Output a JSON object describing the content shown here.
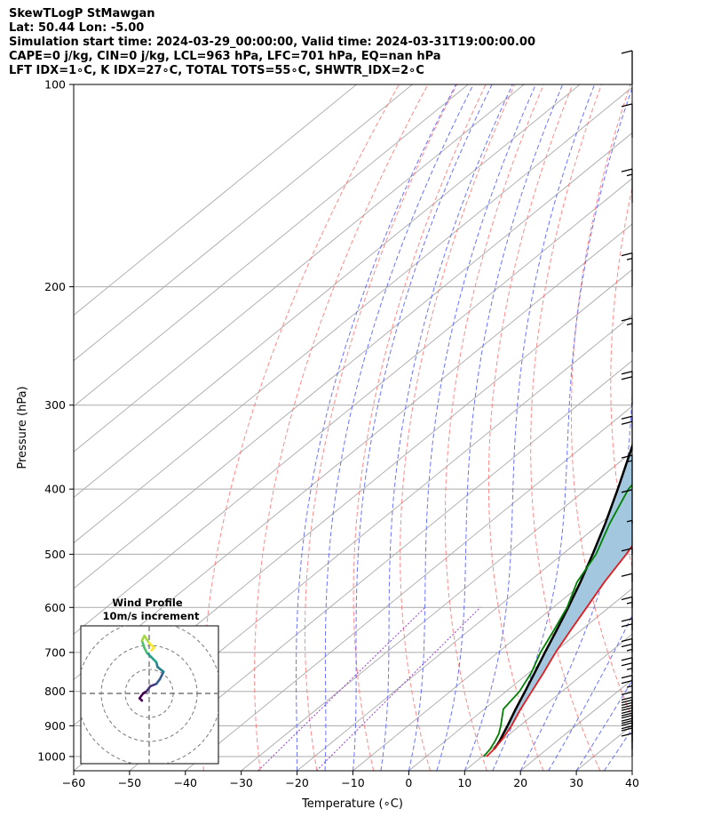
{
  "header": {
    "title": "SkewTLogP StMawgan",
    "location": "Lat: 50.44   Lon: -5.00",
    "times": "Simulation start time: 2024-03-29_00:00:00, Valid time: 2024-03-31T19:00:00.00",
    "indices_1": "CAPE=0 j/kg, CIN=0 j/kg, LCL=963 hPa, LFC=701 hPa, EQ=nan hPa",
    "indices_2": "LFT IDX=1∘C, K IDX=27∘C, TOTAL TOTS=55∘C, SHWTR_IDX=2∘C"
  },
  "chart_data": {
    "type": "line",
    "title": "SkewTLogP StMawgan",
    "xlabel": "Temperature (∘C)",
    "ylabel": "Pressure (hPa)",
    "xlim": [
      -60,
      40
    ],
    "ylim": [
      1050,
      100
    ],
    "y_scale": "log",
    "skew": "skew-T",
    "grid": true,
    "x_ticks": [
      -60,
      -50,
      -40,
      -30,
      -20,
      -10,
      0,
      10,
      20,
      30,
      40
    ],
    "y_ticks": [
      100,
      200,
      300,
      400,
      500,
      600,
      700,
      800,
      900,
      1000
    ],
    "colors": {
      "temperature": "#e41a1c",
      "dewpoint": "#008000",
      "parcel": "#000000",
      "shade": "#a3c7df",
      "dry_adiabats": "#ff6b6b",
      "moist_adiabats": "#5a63ff",
      "isotherms": "#aaaaaa",
      "mixing_ratio": "#9440c9"
    },
    "series": [
      {
        "role": "temperature",
        "points": [
          [
            1000,
            10.8
          ],
          [
            975,
            10.5
          ],
          [
            950,
            10.0
          ],
          [
            925,
            9.3
          ],
          [
            900,
            8.5
          ],
          [
            850,
            6.5
          ],
          [
            800,
            4.6
          ],
          [
            750,
            2.6
          ],
          [
            700,
            0.3
          ],
          [
            650,
            -1.8
          ],
          [
            600,
            -4.0
          ],
          [
            550,
            -6.4
          ],
          [
            500,
            -8.6
          ],
          [
            450,
            -11.4
          ],
          [
            400,
            -14.5
          ],
          [
            350,
            -17.3
          ],
          [
            325,
            -19.5
          ],
          [
            300,
            -21.8
          ],
          [
            290,
            -22.6
          ],
          [
            280,
            -19.5
          ],
          [
            260,
            -14.5
          ],
          [
            240,
            -11.0
          ],
          [
            220,
            -5.5
          ],
          [
            200,
            -2.0
          ],
          [
            180,
            1.8
          ],
          [
            160,
            5.7
          ],
          [
            140,
            9.8
          ],
          [
            120,
            15.0
          ],
          [
            100,
            20.5
          ]
        ]
      },
      {
        "role": "dewpoint",
        "points": [
          [
            1000,
            10.3
          ],
          [
            975,
            9.8
          ],
          [
            950,
            9.0
          ],
          [
            925,
            8.0
          ],
          [
            900,
            6.6
          ],
          [
            850,
            3.4
          ],
          [
            800,
            2.4
          ],
          [
            750,
            0.4
          ],
          [
            700,
            -2.4
          ],
          [
            650,
            -4.8
          ],
          [
            600,
            -7.5
          ],
          [
            550,
            -11.3
          ],
          [
            500,
            -14.0
          ],
          [
            450,
            -18.3
          ],
          [
            400,
            -22.5
          ],
          [
            380,
            -23.4
          ],
          [
            360,
            -25.0
          ],
          [
            340,
            -28.8
          ],
          [
            320,
            -30.8
          ],
          [
            300,
            -32.5
          ],
          [
            280,
            -33.0
          ],
          [
            260,
            -33.6
          ],
          [
            240,
            -37.0
          ],
          [
            220,
            -40.3
          ],
          [
            200,
            -44.6
          ],
          [
            180,
            -47.7
          ],
          [
            160,
            -51.0
          ],
          [
            140,
            -55.0
          ],
          [
            120,
            -59.5
          ],
          [
            100,
            -66.0
          ]
        ]
      },
      {
        "role": "parcel",
        "points": [
          [
            975,
            10.5
          ],
          [
            963,
            10.2
          ],
          [
            950,
            9.8
          ],
          [
            925,
            8.8
          ],
          [
            900,
            7.8
          ],
          [
            850,
            5.6
          ],
          [
            800,
            3.4
          ],
          [
            750,
            1.0
          ],
          [
            700,
            -1.6
          ],
          [
            650,
            -4.3
          ],
          [
            600,
            -7.3
          ],
          [
            550,
            -10.7
          ],
          [
            500,
            -14.6
          ],
          [
            450,
            -19.1
          ],
          [
            400,
            -24.4
          ],
          [
            350,
            -30.6
          ],
          [
            300,
            -37.9
          ],
          [
            250,
            -46.3
          ],
          [
            200,
            -56.1
          ],
          [
            150,
            -67.9
          ],
          [
            100,
            -80.6
          ]
        ]
      }
    ],
    "wind_barbs": [
      [
        1000,
        29
      ],
      [
        975,
        31
      ],
      [
        950,
        31
      ],
      [
        925,
        30
      ],
      [
        900,
        29
      ],
      [
        850,
        25
      ],
      [
        800,
        24
      ],
      [
        750,
        27
      ],
      [
        700,
        19
      ],
      [
        650,
        17
      ],
      [
        600,
        12
      ],
      [
        550,
        9
      ],
      [
        500,
        6
      ],
      [
        450,
        8
      ],
      [
        400,
        13
      ],
      [
        350,
        19
      ],
      [
        300,
        21
      ],
      [
        250,
        17
      ],
      [
        200,
        16
      ],
      [
        150,
        15
      ],
      [
        120,
        12
      ],
      [
        100,
        10
      ]
    ],
    "inset": {
      "title": "Wind Profile",
      "subtitle": "10m/s increment",
      "hodograph": [
        [
          -3,
          -3
        ],
        [
          -4,
          -2
        ],
        [
          -2.5,
          0
        ],
        [
          -1,
          1
        ],
        [
          0.5,
          3
        ],
        [
          3,
          4
        ],
        [
          4.5,
          6
        ],
        [
          6,
          9
        ],
        [
          3.5,
          11
        ],
        [
          3,
          13
        ],
        [
          1,
          15
        ],
        [
          -1,
          17
        ],
        [
          -2,
          19
        ],
        [
          -3,
          22
        ],
        [
          -2,
          24
        ],
        [
          0,
          21
        ],
        [
          2,
          19
        ],
        [
          1,
          18
        ]
      ]
    }
  }
}
